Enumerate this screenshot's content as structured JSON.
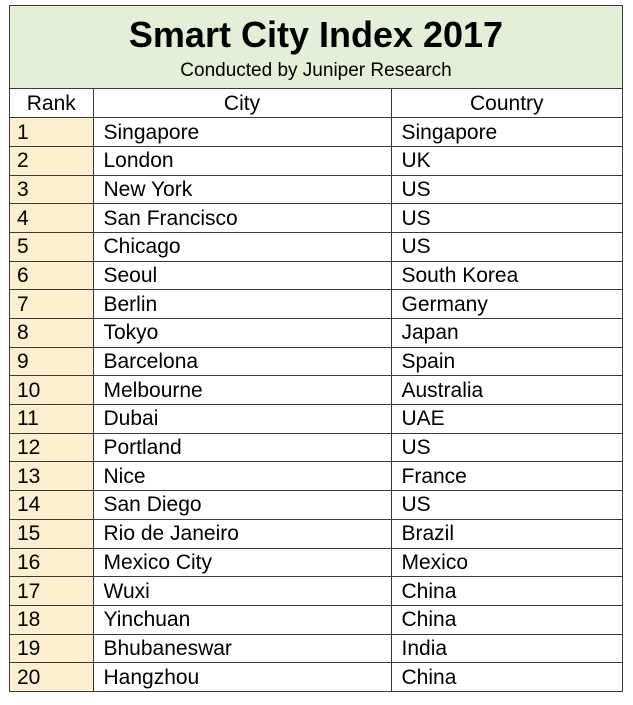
{
  "header": {
    "title": "Smart City Index 2017",
    "subtitle": "Conducted by Juniper Research"
  },
  "colors": {
    "header_bg": "#e4efd7",
    "rank_bg": "#fbefcf",
    "border": "#3a3a3a"
  },
  "columns": [
    "Rank",
    "City",
    "Country"
  ],
  "rows": [
    {
      "rank": "1",
      "city": "Singapore",
      "country": "Singapore"
    },
    {
      "rank": "2",
      "city": "London",
      "country": "UK"
    },
    {
      "rank": "3",
      "city": "New York",
      "country": "US"
    },
    {
      "rank": "4",
      "city": "San Francisco",
      "country": "US"
    },
    {
      "rank": "5",
      "city": "Chicago",
      "country": "US"
    },
    {
      "rank": "6",
      "city": "Seoul",
      "country": "South Korea"
    },
    {
      "rank": "7",
      "city": "Berlin",
      "country": "Germany"
    },
    {
      "rank": "8",
      "city": "Tokyo",
      "country": "Japan"
    },
    {
      "rank": "9",
      "city": "Barcelona",
      "country": "Spain"
    },
    {
      "rank": "10",
      "city": "Melbourne",
      "country": "Australia"
    },
    {
      "rank": "11",
      "city": "Dubai",
      "country": "UAE"
    },
    {
      "rank": "12",
      "city": "Portland",
      "country": "US"
    },
    {
      "rank": "13",
      "city": "Nice",
      "country": "France"
    },
    {
      "rank": "14",
      "city": "San Diego",
      "country": "US"
    },
    {
      "rank": "15",
      "city": "Rio de Janeiro",
      "country": "Brazil"
    },
    {
      "rank": "16",
      "city": "Mexico City",
      "country": "Mexico"
    },
    {
      "rank": "17",
      "city": "Wuxi",
      "country": "China"
    },
    {
      "rank": "18",
      "city": "Yinchuan",
      "country": "China"
    },
    {
      "rank": "19",
      "city": "Bhubaneswar",
      "country": "India"
    },
    {
      "rank": "20",
      "city": "Hangzhou",
      "country": "China"
    }
  ]
}
